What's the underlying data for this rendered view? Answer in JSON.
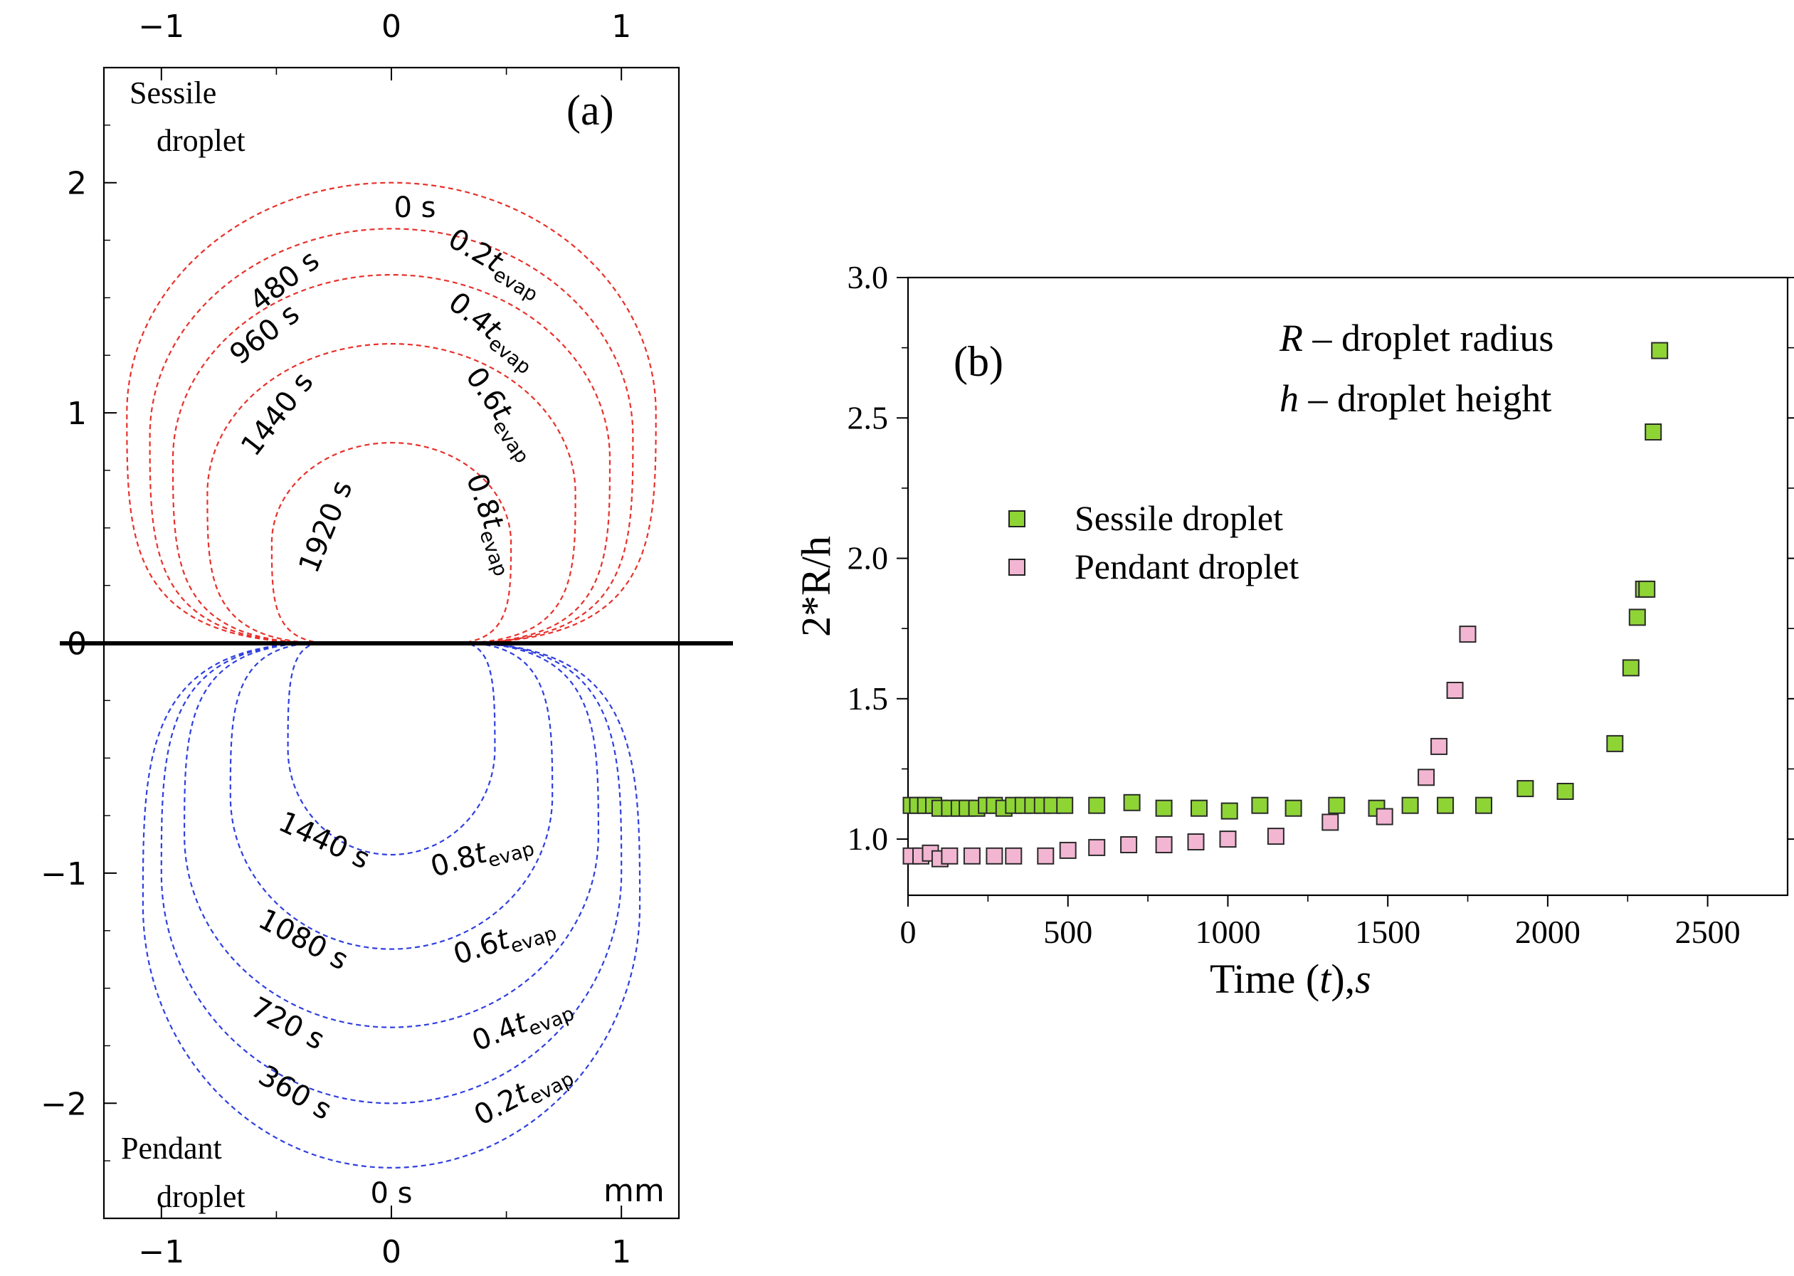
{
  "chart_data": [
    {
      "panel": "(a)",
      "type": "line",
      "xlabel": "",
      "ylabel": "",
      "xlim": [
        -1.25,
        1.25
      ],
      "ylim": [
        -2.5,
        2.5
      ],
      "x_ticks": [
        "−1",
        "0",
        "1"
      ],
      "y_ticks": [
        "2",
        "1",
        "0",
        "−1",
        "−2"
      ],
      "unit_label": "mm",
      "sessile_label": [
        "Sessile",
        "droplet"
      ],
      "pendant_label": [
        "Pendant",
        "droplet"
      ],
      "sessile_color": "#e8312b",
      "pendant_color": "#2f3fe0",
      "sessile_series": [
        {
          "time": "0 s",
          "frac": "",
          "base_half_width": 0.35,
          "half_width": 1.15,
          "apex": 2.0
        },
        {
          "time": "480 s",
          "frac": "0.2",
          "base_half_width": 0.35,
          "half_width": 1.05,
          "apex": 1.8
        },
        {
          "time": "960 s",
          "frac": "0.4",
          "base_half_width": 0.35,
          "half_width": 0.95,
          "apex": 1.6
        },
        {
          "time": "1440 s",
          "frac": "0.6",
          "base_half_width": 0.33,
          "half_width": 0.8,
          "apex": 1.3
        },
        {
          "time": "1920 s",
          "frac": "0.8",
          "base_half_width": 0.3,
          "half_width": 0.52,
          "apex": 0.87
        }
      ],
      "pendant_series": [
        {
          "time": "0 s",
          "frac": "",
          "base_half_width": 0.35,
          "half_width": 1.08,
          "apex": -2.28
        },
        {
          "time": "360 s",
          "frac": "0.2",
          "base_half_width": 0.35,
          "half_width": 1.0,
          "apex": -2.0
        },
        {
          "time": "720 s",
          "frac": "0.4",
          "base_half_width": 0.35,
          "half_width": 0.9,
          "apex": -1.67
        },
        {
          "time": "1080 s",
          "frac": "0.6",
          "base_half_width": 0.34,
          "half_width": 0.7,
          "apex": -1.33
        },
        {
          "time": "1440 s",
          "frac": "0.8",
          "base_half_width": 0.32,
          "half_width": 0.45,
          "apex": -0.92
        }
      ],
      "t_symbol": "t",
      "evap_subscript": "evap",
      "top_time_label": "0 s",
      "bottom_time_label": "0 s"
    },
    {
      "panel": "(b)",
      "type": "scatter",
      "xlabel_parts": [
        "Time (",
        "t",
        "),",
        "s"
      ],
      "ylabel": "2*R/h",
      "xlim": [
        0,
        2750
      ],
      "ylim": [
        0.8,
        3.0
      ],
      "x_ticks": [
        0,
        500,
        1000,
        1500,
        2000,
        2500
      ],
      "y_ticks": [
        "1.0",
        "1.5",
        "2.0",
        "2.5",
        "3.0"
      ],
      "annotation_lines": [
        {
          "symbol": "R",
          "text": " – droplet radius"
        },
        {
          "symbol": "h",
          "text": " – droplet height"
        }
      ],
      "series": [
        {
          "name": "Sessile droplet",
          "color": "#8fd435",
          "points": [
            [
              10,
              1.12
            ],
            [
              30,
              1.12
            ],
            [
              55,
              1.12
            ],
            [
              80,
              1.12
            ],
            [
              100,
              1.11
            ],
            [
              130,
              1.11
            ],
            [
              160,
              1.11
            ],
            [
              185,
              1.11
            ],
            [
              215,
              1.11
            ],
            [
              245,
              1.12
            ],
            [
              270,
              1.12
            ],
            [
              300,
              1.11
            ],
            [
              330,
              1.12
            ],
            [
              360,
              1.12
            ],
            [
              390,
              1.12
            ],
            [
              420,
              1.12
            ],
            [
              450,
              1.12
            ],
            [
              490,
              1.12
            ],
            [
              590,
              1.12
            ],
            [
              700,
              1.13
            ],
            [
              800,
              1.11
            ],
            [
              910,
              1.11
            ],
            [
              1005,
              1.1
            ],
            [
              1100,
              1.12
            ],
            [
              1205,
              1.11
            ],
            [
              1340,
              1.12
            ],
            [
              1465,
              1.11
            ],
            [
              1570,
              1.12
            ],
            [
              1680,
              1.12
            ],
            [
              1800,
              1.12
            ],
            [
              1930,
              1.18
            ],
            [
              2055,
              1.17
            ],
            [
              2210,
              1.34
            ],
            [
              2260,
              1.61
            ],
            [
              2280,
              1.79
            ],
            [
              2300,
              1.89
            ],
            [
              2310,
              1.89
            ],
            [
              2330,
              2.45
            ],
            [
              2350,
              2.74
            ]
          ]
        },
        {
          "name": "Pendant droplet",
          "color": "#f2b6d2",
          "points": [
            [
              10,
              0.94
            ],
            [
              40,
              0.94
            ],
            [
              70,
              0.95
            ],
            [
              100,
              0.93
            ],
            [
              130,
              0.94
            ],
            [
              200,
              0.94
            ],
            [
              270,
              0.94
            ],
            [
              330,
              0.94
            ],
            [
              430,
              0.94
            ],
            [
              500,
              0.96
            ],
            [
              590,
              0.97
            ],
            [
              690,
              0.98
            ],
            [
              800,
              0.98
            ],
            [
              900,
              0.99
            ],
            [
              1000,
              1.0
            ],
            [
              1150,
              1.01
            ],
            [
              1320,
              1.06
            ],
            [
              1490,
              1.08
            ],
            [
              1620,
              1.22
            ],
            [
              1660,
              1.33
            ],
            [
              1710,
              1.53
            ],
            [
              1750,
              1.73
            ]
          ]
        }
      ]
    }
  ]
}
